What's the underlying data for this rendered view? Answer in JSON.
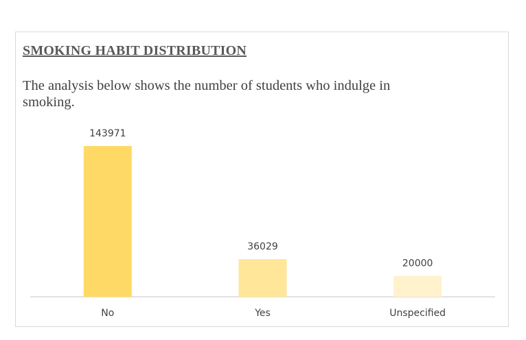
{
  "chart_data": {
    "type": "bar",
    "title": "SMOKING HABIT DISTRIBUTION",
    "subtitle": "The analysis below shows the number of students who indulge in smoking.",
    "categories": [
      "No",
      "Yes",
      "Unspecified"
    ],
    "values": [
      143971,
      36029,
      20000
    ],
    "data_labels": [
      "143971",
      "36029",
      "20000"
    ],
    "colors": {
      "bars": [
        "#ffd966",
        "#ffe699",
        "#fff2cc"
      ],
      "axis": "#d9d9d9",
      "text": "#404040",
      "title": "#595959"
    },
    "xlabel": "",
    "ylabel": "",
    "ylim": [
      0,
      143971
    ],
    "grid": false,
    "legend": "none"
  }
}
